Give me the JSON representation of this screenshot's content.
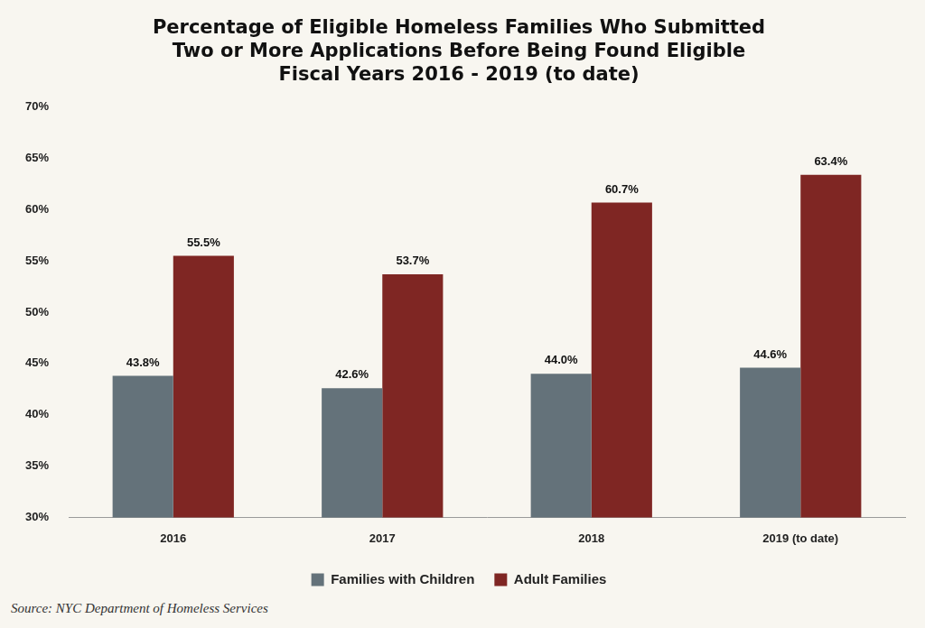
{
  "chart_data": {
    "type": "bar",
    "title": [
      "Percentage of Eligible Homeless Families Who Submitted",
      "Two or More Applications Before Being Found Eligible",
      "Fiscal Years 2016 - 2019 (to date)"
    ],
    "source": "Source: NYC Department of Homeless Services",
    "categories": [
      "2016",
      "2017",
      "2018",
      "2019 (to date)"
    ],
    "series": [
      {
        "name": "Families with Children",
        "color": "#64727a",
        "values": [
          43.8,
          42.6,
          44.0,
          44.6
        ],
        "value_labels": [
          "43.8%",
          "42.6%",
          "44.0%",
          "44.6%"
        ]
      },
      {
        "name": "Adult Families",
        "color": "#7f2623",
        "values": [
          55.5,
          53.7,
          60.7,
          63.4
        ],
        "value_labels": [
          "55.5%",
          "53.7%",
          "60.7%",
          "63.4%"
        ]
      }
    ],
    "ylim": [
      30,
      70
    ],
    "yticks": [
      {
        "value": 30,
        "label": "30%"
      },
      {
        "value": 35,
        "label": "35%"
      },
      {
        "value": 40,
        "label": "40%"
      },
      {
        "value": 45,
        "label": "45%"
      },
      {
        "value": 50,
        "label": "50%"
      },
      {
        "value": 55,
        "label": "55%"
      },
      {
        "value": 60,
        "label": "60%"
      },
      {
        "value": 65,
        "label": "65%"
      },
      {
        "value": 70,
        "label": "70%"
      }
    ],
    "grid": false,
    "legend": "bottom",
    "data_labels": true
  }
}
